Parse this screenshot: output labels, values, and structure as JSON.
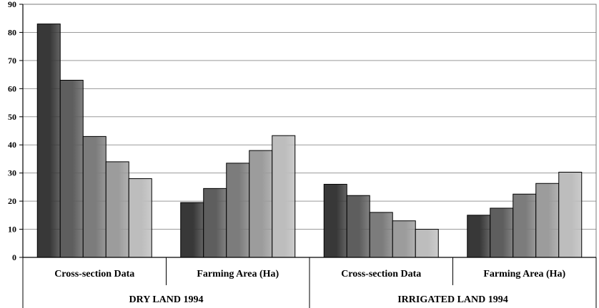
{
  "chart_data": {
    "type": "bar",
    "ylim": [
      0,
      90
    ],
    "yticks": [
      "0",
      "10",
      "20",
      "30",
      "40",
      "50",
      "60",
      "70",
      "80",
      "90"
    ],
    "grid": true,
    "legend": "none",
    "groups": [
      {
        "label": "DRY LAND 1994",
        "subgroups": [
          {
            "label": "Cross-section Data",
            "values": [
              83,
              63,
              43,
              34,
              28
            ]
          },
          {
            "label": "Farming Area (Ha)",
            "values": [
              19.5,
              24.5,
              33.5,
              38,
              43.3
            ]
          }
        ]
      },
      {
        "label": "IRRIGATED LAND 1994",
        "subgroups": [
          {
            "label": "Cross-section Data",
            "values": [
              26,
              22,
              16,
              13,
              10
            ]
          },
          {
            "label": "Farming Area (Ha)",
            "values": [
              15,
              17.5,
              22.5,
              26.3,
              30.3
            ]
          }
        ]
      }
    ],
    "bar_colors": [
      "#383838",
      "#5e5e5e",
      "#7c7c7c",
      "#9c9c9c",
      "#bdbdbd"
    ]
  }
}
